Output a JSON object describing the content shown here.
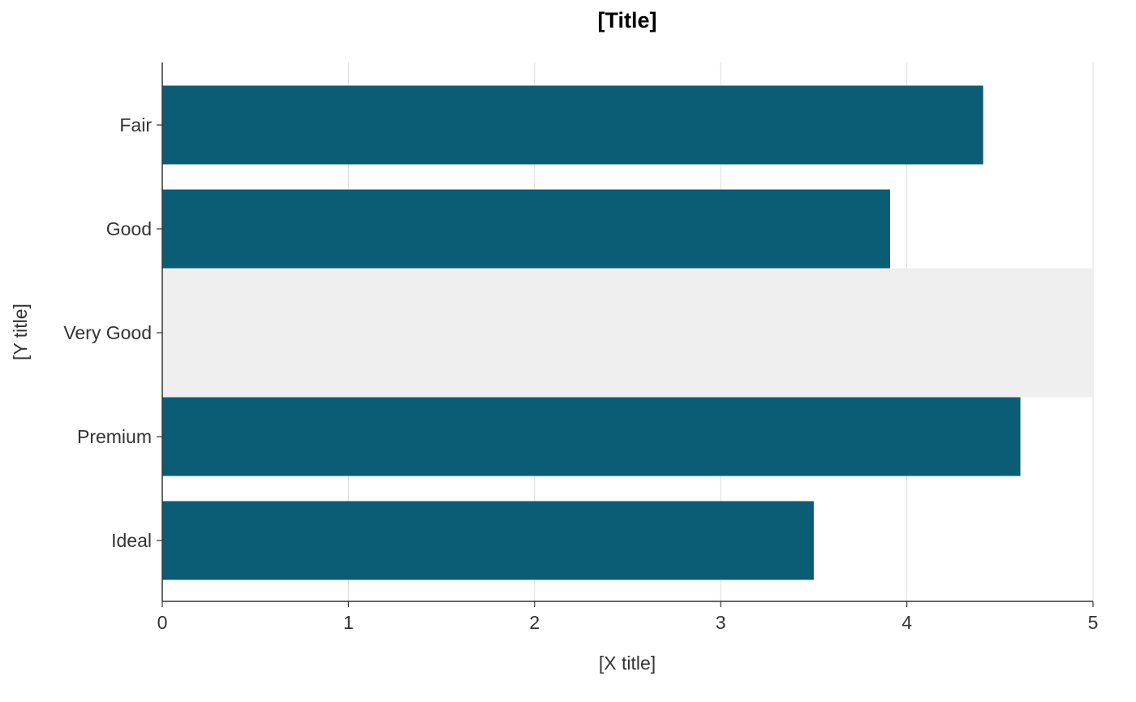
{
  "chart_data": {
    "type": "bar",
    "orientation": "horizontal",
    "title": "[Title]",
    "xlabel": "[X title]",
    "ylabel": "[Y title]",
    "categories": [
      "Fair",
      "Good",
      "Very Good",
      "Premium",
      "Ideal"
    ],
    "values": [
      4.41,
      3.91,
      5.0,
      4.61,
      3.5
    ],
    "highlighted_category": "Very Good",
    "xlim": [
      0,
      5
    ],
    "x_ticks": [
      "0",
      "1",
      "2",
      "3",
      "4",
      "5"
    ],
    "grid": "vertical major",
    "legend": "none",
    "colors": {
      "bar": "#0b5c75",
      "highlight_bar": "#efefef",
      "grid": "#dddddd",
      "axis": "#333333"
    }
  }
}
